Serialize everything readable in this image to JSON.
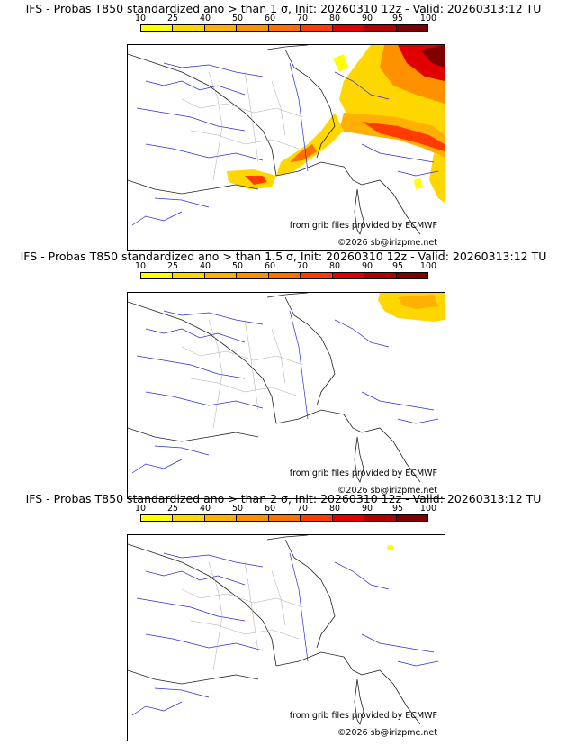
{
  "scale": {
    "ticks": [
      "10",
      "25",
      "40",
      "50",
      "60",
      "70",
      "80",
      "90",
      "95",
      "100"
    ],
    "colors": [
      "#ffff00",
      "#ffd700",
      "#ffb000",
      "#ff9000",
      "#ff7000",
      "#ff3c00",
      "#e00000",
      "#b00000",
      "#800000"
    ]
  },
  "credits": {
    "source": "from grib files provided by ECMWF",
    "copyright": "©2026 sb@irizpme.net"
  },
  "panels": [
    {
      "title": "IFS - Probas T850  standardized ano > than 1 σ, Init: 20260310 12z - Valid: 20260313:12 TU"
    },
    {
      "title": "IFS - Probas T850  standardized ano > than 1.5 σ, Init: 20260310 12z - Valid: 20260313:12 TU"
    },
    {
      "title": "IFS - Probas T850  standardized ano > than 2 σ, Init: 20260310 12z - Valid: 20260313:12 TU"
    }
  ]
}
